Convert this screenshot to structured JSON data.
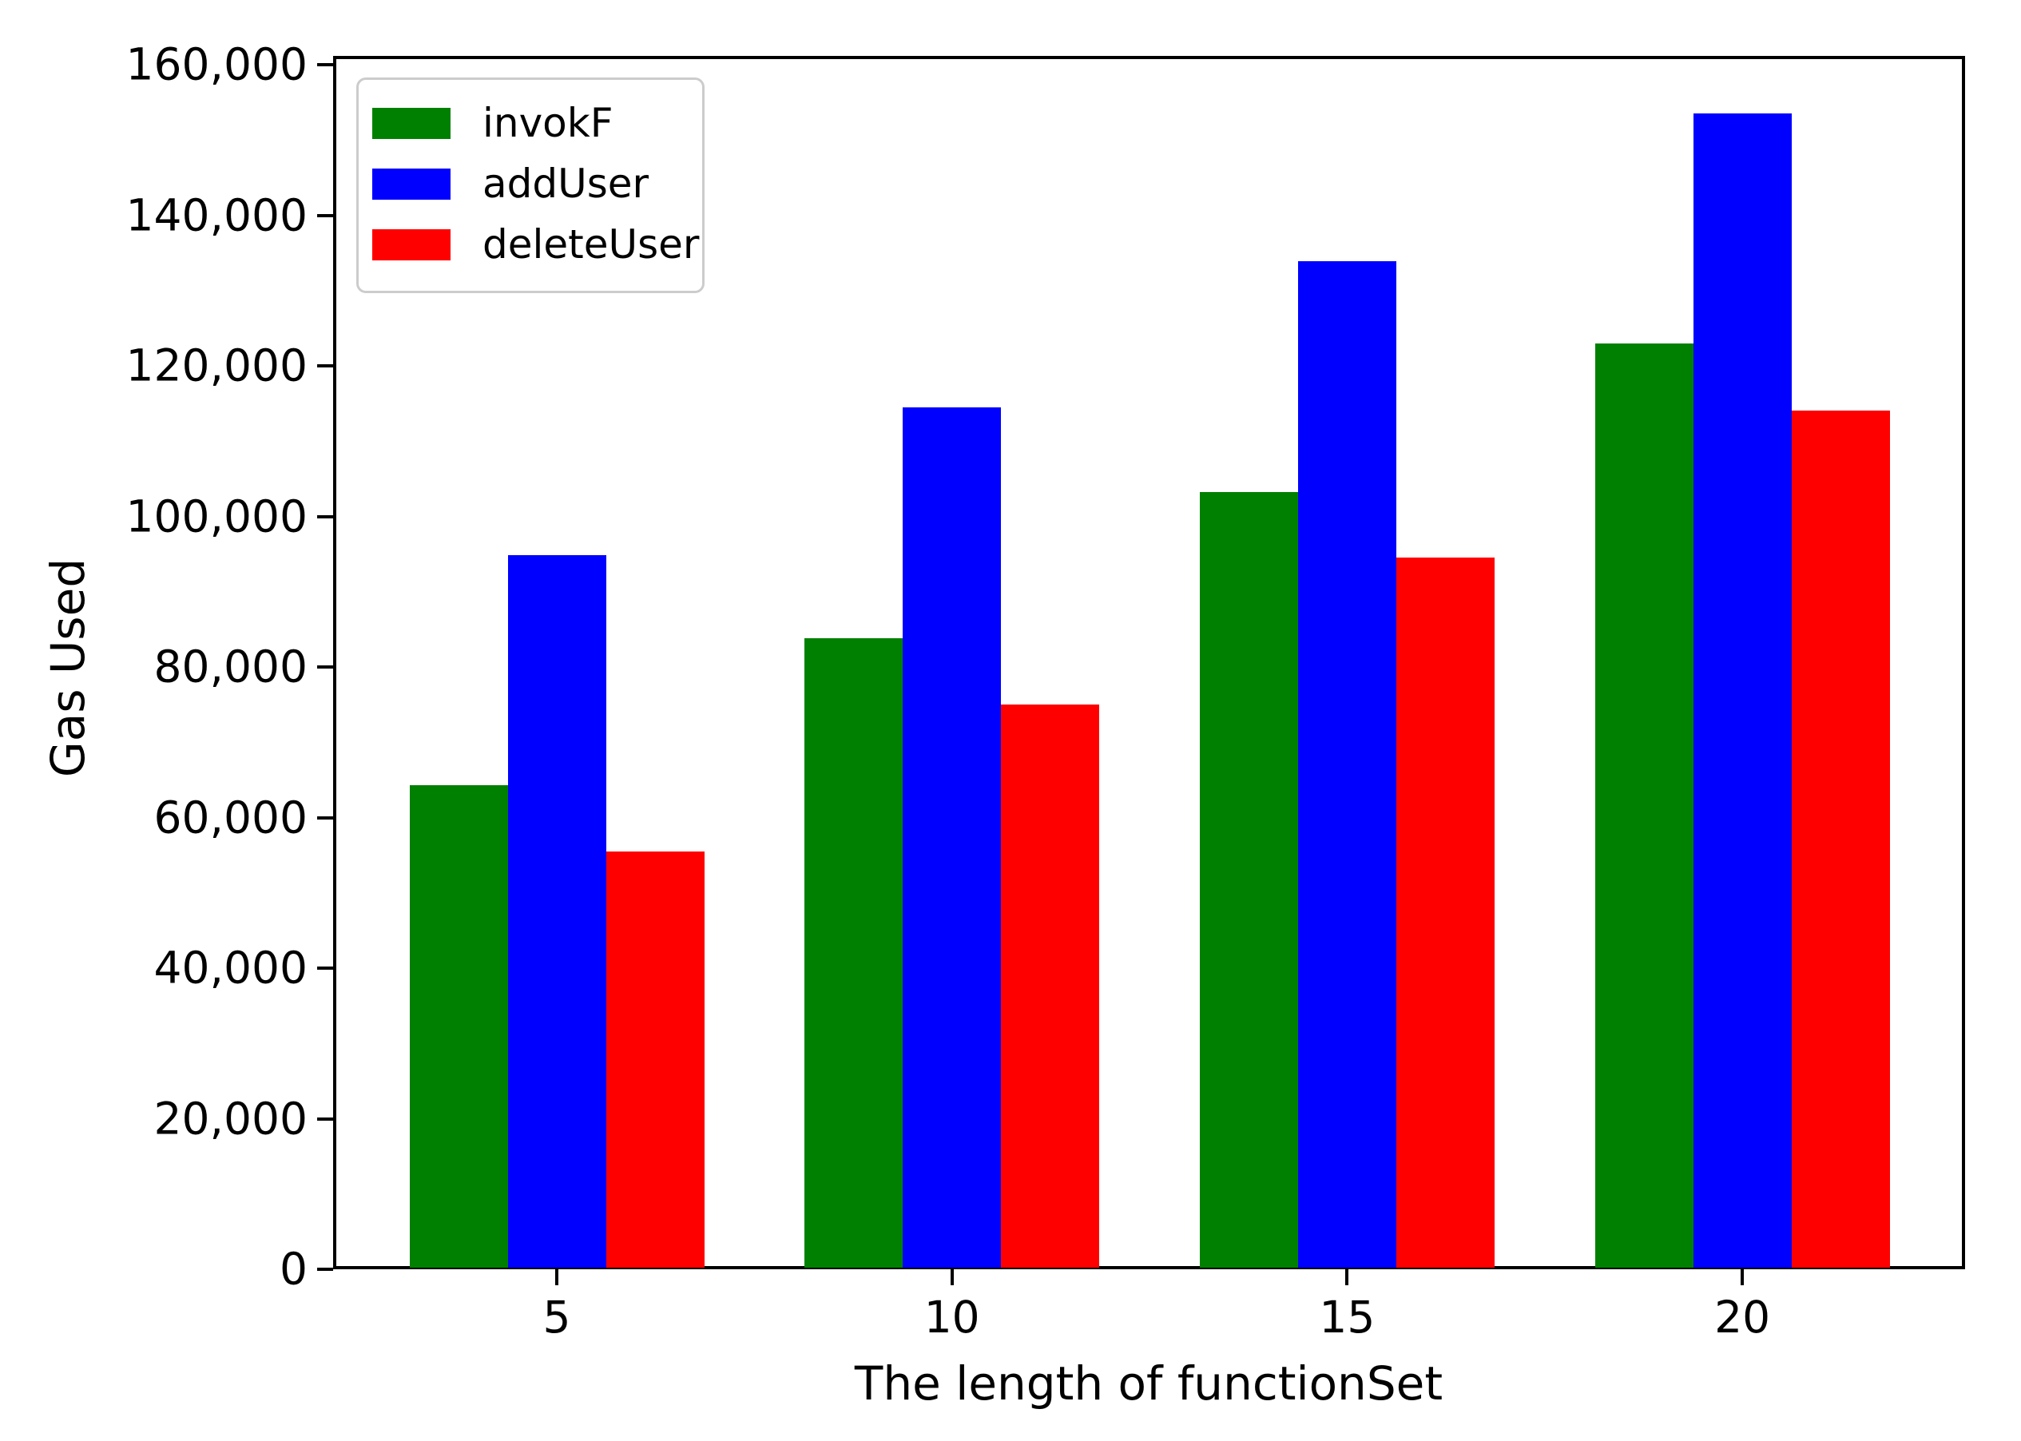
{
  "figure": {
    "background": "#ffffff",
    "text_color": "#000000",
    "axis_color": "#000000",
    "legend_border_color": "#cccccc"
  },
  "chart_data": {
    "type": "bar",
    "title": "",
    "xlabel": "The length of functionSet",
    "ylabel": "Gas Used",
    "categories": [
      "5",
      "10",
      "15",
      "20"
    ],
    "series": [
      {
        "name": "invokF",
        "color": "#008000",
        "values": [
          64300,
          83800,
          103300,
          123000
        ]
      },
      {
        "name": "addUser",
        "color": "#0000ff",
        "values": [
          94900,
          114500,
          133900,
          153600
        ]
      },
      {
        "name": "deleteUser",
        "color": "#ff0000",
        "values": [
          55500,
          75000,
          94600,
          114100
        ]
      }
    ],
    "ylim": [
      0,
      161200
    ],
    "yticks": [
      {
        "value": 0,
        "label": "0"
      },
      {
        "value": 20000,
        "label": "20,000"
      },
      {
        "value": 40000,
        "label": "40,000"
      },
      {
        "value": 60000,
        "label": "60,000"
      },
      {
        "value": 80000,
        "label": "80,000"
      },
      {
        "value": 100000,
        "label": "100,000"
      },
      {
        "value": 120000,
        "label": "120,000"
      },
      {
        "value": 140000,
        "label": "140,000"
      },
      {
        "value": 160000,
        "label": "160,000"
      }
    ],
    "grid": false,
    "legend": {
      "position": "upper-left",
      "entries": [
        "invokF",
        "addUser",
        "deleteUser"
      ]
    }
  }
}
